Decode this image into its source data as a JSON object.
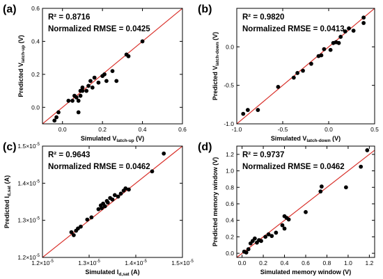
{
  "colors": {
    "fit_line": "#d9302a",
    "points": "#000000",
    "axes": "#000000"
  },
  "chart_data": [
    {
      "type": "scatter",
      "panel_label": "(a)",
      "stat_r2": "R² = 0.8716",
      "stat_rmse": "Normalized RMSE = 0.0425",
      "xlabel": {
        "pre": "Simulated ",
        "italic": "V",
        "sub": "latch-up",
        "post": " (V)"
      },
      "ylabel": {
        "pre": "Predicted ",
        "italic": "V",
        "sub": "latch-up",
        "post": " (V)"
      },
      "xlim": [
        -0.1,
        0.6
      ],
      "ylim": [
        -0.1,
        0.6
      ],
      "xticks": [
        {
          "v": 0.0,
          "label": "0.0"
        },
        {
          "v": 0.2,
          "label": "0.2"
        },
        {
          "v": 0.4,
          "label": "0.4"
        },
        {
          "v": 0.6,
          "label": "0.6"
        }
      ],
      "yticks": [
        {
          "v": 0.0,
          "label": "0.0"
        },
        {
          "v": 0.2,
          "label": "0.2"
        },
        {
          "v": 0.4,
          "label": "0.4"
        },
        {
          "v": 0.6,
          "label": "0.6"
        }
      ],
      "grid": false,
      "x": [
        -0.04,
        -0.03,
        -0.02,
        0.03,
        0.05,
        0.06,
        0.07,
        0.08,
        0.08,
        0.09,
        0.09,
        0.1,
        0.1,
        0.12,
        0.13,
        0.14,
        0.15,
        0.16,
        0.18,
        0.2,
        0.21,
        0.22,
        0.25,
        0.27,
        0.32,
        0.33,
        0.4
      ],
      "y": [
        -0.08,
        -0.06,
        -0.03,
        0.04,
        0.04,
        0.07,
        0.06,
        -0.03,
        0.04,
        0.07,
        0.1,
        0.1,
        0.12,
        0.1,
        0.13,
        0.16,
        0.12,
        0.18,
        0.15,
        0.19,
        0.2,
        0.16,
        0.22,
        0.16,
        0.32,
        0.31,
        0.4
      ]
    },
    {
      "type": "scatter",
      "panel_label": "(b)",
      "stat_r2": "R² = 0.9820",
      "stat_rmse": "Normalized RMSE = 0.0413",
      "xlabel": {
        "pre": "Simulated ",
        "italic": "V",
        "sub": "latch-down",
        "post": " (V)"
      },
      "ylabel": {
        "pre": "Predicted ",
        "italic": "V",
        "sub": "latch-down",
        "post": " (V)"
      },
      "xlim": [
        -1.0,
        0.5
      ],
      "ylim": [
        -1.0,
        0.5
      ],
      "xticks": [
        {
          "v": -1.0,
          "label": "-1.0"
        },
        {
          "v": -0.5,
          "label": "-0.5"
        },
        {
          "v": 0.0,
          "label": "0.0"
        },
        {
          "v": 0.5,
          "label": "0.5"
        }
      ],
      "yticks": [
        {
          "v": -1.0,
          "label": "-1.0"
        },
        {
          "v": -0.5,
          "label": "-0.5"
        },
        {
          "v": 0.0,
          "label": "0.0"
        }
      ],
      "grid": false,
      "x": [
        -0.93,
        -0.88,
        -0.77,
        -0.55,
        -0.38,
        -0.34,
        -0.28,
        -0.19,
        -0.11,
        -0.08,
        -0.05,
        0.02,
        0.05,
        0.08,
        0.11,
        0.13,
        0.18,
        0.22,
        0.27,
        0.38,
        0.38
      ],
      "y": [
        -0.87,
        -0.82,
        -0.82,
        -0.52,
        -0.4,
        -0.34,
        -0.31,
        -0.22,
        -0.12,
        -0.11,
        -0.03,
        -0.04,
        0.05,
        0.06,
        0.05,
        0.13,
        0.2,
        0.24,
        0.21,
        0.31,
        0.38
      ]
    },
    {
      "type": "scatter",
      "panel_label": "(c)",
      "stat_r2": "R² = 0.9643",
      "stat_rmse": "Normalized RMSE = 0.0462",
      "xlabel": {
        "pre": "Simulated I",
        "italic": "",
        "sub": "d,sat",
        "post": " (A)"
      },
      "ylabel": {
        "pre": "Predicted I",
        "italic": "",
        "sub": "d,sat",
        "post": " (A)"
      },
      "xlim": [
        1.2e-05,
        1.5e-05
      ],
      "ylim": [
        1.2e-05,
        1.5e-05
      ],
      "xticks": [
        {
          "v": 1.2e-05,
          "mant": "1.2×10",
          "exp": "-5"
        },
        {
          "v": 1.3e-05,
          "mant": "1.3×10",
          "exp": "-5"
        },
        {
          "v": 1.4e-05,
          "mant": "1.4×10",
          "exp": "-5"
        },
        {
          "v": 1.5e-05,
          "mant": "1.5×10",
          "exp": "-5"
        }
      ],
      "yticks": [
        {
          "v": 1.2e-05,
          "mant": "1.2×10",
          "exp": "-5"
        },
        {
          "v": 1.3e-05,
          "mant": "1.3×10",
          "exp": "-5"
        },
        {
          "v": 1.4e-05,
          "mant": "1.4×10",
          "exp": "-5"
        },
        {
          "v": 1.5e-05,
          "mant": "1.5×10",
          "exp": "-5"
        }
      ],
      "grid": false,
      "x": [
        1.262e-05,
        1.267e-05,
        1.272e-05,
        1.276e-05,
        1.282e-05,
        1.296e-05,
        1.305e-05,
        1.32e-05,
        1.325e-05,
        1.327e-05,
        1.33e-05,
        1.334e-05,
        1.338e-05,
        1.34e-05,
        1.345e-05,
        1.35e-05,
        1.355e-05,
        1.362e-05,
        1.368e-05,
        1.374e-05,
        1.378e-05,
        1.385e-05,
        1.435e-05,
        1.46e-05
      ],
      "y": [
        1.268e-05,
        1.26e-05,
        1.272e-05,
        1.278e-05,
        1.283e-05,
        1.302e-05,
        1.308e-05,
        1.33e-05,
        1.34e-05,
        1.333e-05,
        1.345e-05,
        1.338e-05,
        1.352e-05,
        1.348e-05,
        1.36e-05,
        1.356e-05,
        1.368e-05,
        1.364e-05,
        1.372e-05,
        1.38e-05,
        1.386e-05,
        1.383e-05,
        1.432e-05,
        1.48e-05
      ]
    },
    {
      "type": "scatter",
      "panel_label": "(d)",
      "stat_r2": "R² = 0.9737",
      "stat_rmse": "Normalized RMSE = 0.0462",
      "xlabel": {
        "pre": "Simulated memory window (V)",
        "italic": "",
        "sub": "",
        "post": ""
      },
      "ylabel": {
        "pre": "Predicted memory window (V)",
        "italic": "",
        "sub": "",
        "post": ""
      },
      "xlim": [
        -0.05,
        1.25
      ],
      "ylim": [
        -0.05,
        1.3
      ],
      "xticks": [
        {
          "v": 0.0,
          "label": "0.0"
        },
        {
          "v": 0.2,
          "label": "0.2"
        },
        {
          "v": 0.4,
          "label": "0.4"
        },
        {
          "v": 0.6,
          "label": "0.6"
        },
        {
          "v": 0.8,
          "label": "0.8"
        },
        {
          "v": 1.0,
          "label": "1.0"
        },
        {
          "v": 1.2,
          "label": "1.2"
        }
      ],
      "yticks": [
        {
          "v": 0.0,
          "label": "0.0"
        },
        {
          "v": 0.2,
          "label": "0.2"
        },
        {
          "v": 0.4,
          "label": "0.4"
        },
        {
          "v": 0.6,
          "label": "0.6"
        },
        {
          "v": 0.8,
          "label": "0.8"
        },
        {
          "v": 1.0,
          "label": "1.0"
        },
        {
          "v": 1.2,
          "label": "1.2"
        }
      ],
      "grid": false,
      "x": [
        0.02,
        0.04,
        0.06,
        0.08,
        0.1,
        0.12,
        0.14,
        0.16,
        0.18,
        0.22,
        0.25,
        0.28,
        0.32,
        0.38,
        0.4,
        0.4,
        0.42,
        0.44,
        0.6,
        0.74,
        0.75,
        0.98,
        1.12,
        1.18
      ],
      "y": [
        0.02,
        0.01,
        0.05,
        0.12,
        0.15,
        0.18,
        0.13,
        0.16,
        0.15,
        0.2,
        0.23,
        0.21,
        0.25,
        0.34,
        0.45,
        0.3,
        0.43,
        0.41,
        0.5,
        0.75,
        0.81,
        0.8,
        1.05,
        1.25
      ]
    }
  ]
}
